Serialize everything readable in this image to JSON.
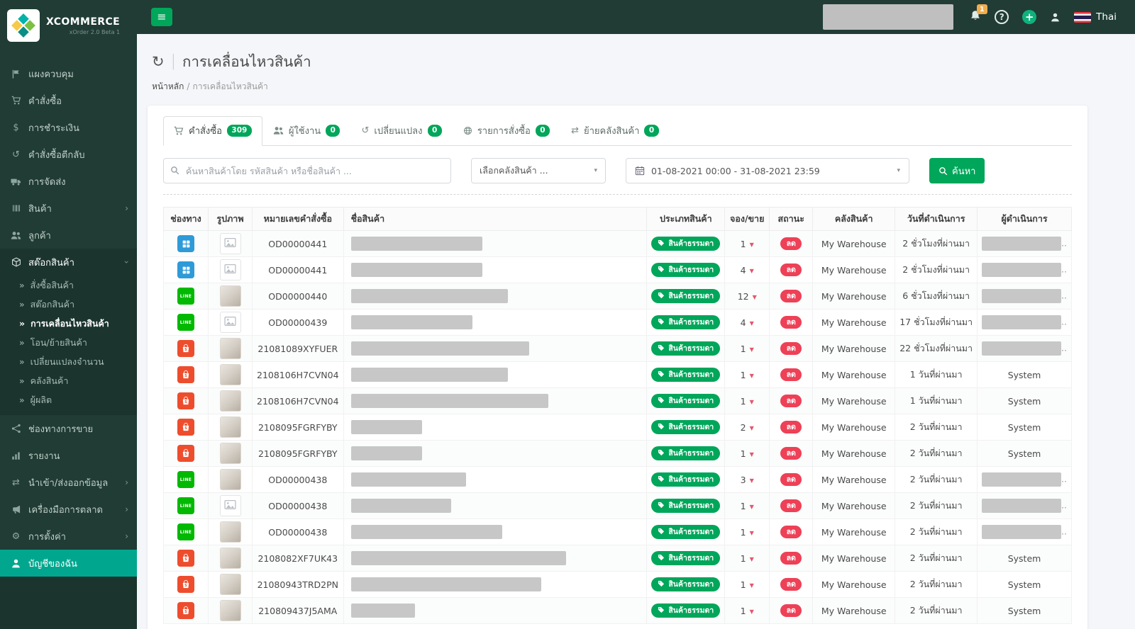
{
  "app": {
    "brand": "XCOMMERCE",
    "brand_sub": "xOrder 2.0 Beta 1",
    "language": "Thai",
    "notification_count": "1"
  },
  "colors": {
    "accent_green": "#00a65a",
    "account_green": "#00a78e",
    "sidebar_dark": "#203c35",
    "status_red": "#ee4056",
    "notification_orange": "#f0ad4e",
    "shopee_orange": "#ee4d2d",
    "line_green": "#00b900",
    "web_blue": "#2e9ad8"
  },
  "sidebar": {
    "items": [
      {
        "label": "แผงควบคุม",
        "icon": "flag-icon"
      },
      {
        "label": "คำสั่งซื้อ",
        "icon": "cart-icon"
      },
      {
        "label": "การชำระเงิน",
        "icon": "dollar-icon"
      },
      {
        "label": "คำสั่งซื้อตีกลับ",
        "icon": "undo-icon"
      },
      {
        "label": "การจัดส่ง",
        "icon": "truck-icon"
      },
      {
        "label": "สินค้า",
        "icon": "products-icon",
        "chevron": "right"
      },
      {
        "label": "ลูกค้า",
        "icon": "customers-icon"
      },
      {
        "label": "สต๊อกสินค้า",
        "icon": "stock-icon",
        "chevron": "down",
        "expanded": true,
        "children": [
          "สั่งซื้อสินค้า",
          "สต๊อกสินค้า",
          "การเคลื่อนไหวสินค้า",
          "โอน/ย้ายสินค้า",
          "เปลี่ยนแปลงจำนวน",
          "คลังสินค้า",
          "ผู้ผลิต"
        ],
        "active_child": "การเคลื่อนไหวสินค้า"
      },
      {
        "label": "ช่องทางการขาย",
        "icon": "channels-icon"
      },
      {
        "label": "รายงาน",
        "icon": "report-icon"
      },
      {
        "label": "นำเข้า/ส่งออกข้อมูล",
        "icon": "import-export-icon",
        "chevron": "right"
      },
      {
        "label": "เครื่องมือการตลาด",
        "icon": "marketing-icon",
        "chevron": "right"
      },
      {
        "label": "การตั้งค่า",
        "icon": "settings-icon",
        "chevron": "right"
      },
      {
        "label": "บัญชีของฉัน",
        "icon": "user-icon",
        "highlight": true
      }
    ]
  },
  "header": {
    "title": "การเคลื่อนไหวสินค้า",
    "breadcrumb_home": "หน้าหลัก",
    "breadcrumb_current": "การเคลื่อนไหวสินค้า"
  },
  "tabs": [
    {
      "label": "คำสั่งซื้อ",
      "count": "309",
      "icon": "cart-icon",
      "active": true
    },
    {
      "label": "ผู้ใช้งาน",
      "count": "0",
      "icon": "users-icon",
      "active": false
    },
    {
      "label": "เปลี่ยนแปลง",
      "count": "0",
      "icon": "history-icon",
      "active": false
    },
    {
      "label": "รายการสั่งซื้อ",
      "count": "0",
      "icon": "globe-icon",
      "active": false
    },
    {
      "label": "ย้ายคลังสินค้า",
      "count": "0",
      "icon": "transfer-icon",
      "active": false
    }
  ],
  "filters": {
    "search_placeholder": "ค้นหาสินค้าโดย รหัสสินค้า หรือชื่อสินค้า ...",
    "warehouse_placeholder": "เลือกคลังสินค้า ...",
    "date_range": "01-08-2021 00:00 - 31-08-2021 23:59",
    "search_button": "ค้นหา"
  },
  "table": {
    "columns": [
      "ช่องทาง",
      "รูปภาพ",
      "หมายเลขคำสั่งซื้อ",
      "ชื่อสินค้า",
      "ประเภทสินค้า",
      "จอง/ขาย",
      "สถานะ",
      "คลังสินค้า",
      "วันที่ดำเนินการ",
      "ผู้ดำเนินการ"
    ],
    "type_badge": "สินค้าธรรมดา",
    "status_badge": "ลด",
    "rows": [
      {
        "channel": "web",
        "image": "placeholder",
        "order": "OD00000441",
        "name_width": 185,
        "qty": "1",
        "warehouse": "My Warehouse",
        "date": "2 ชั่วโมงที่ผ่านมา",
        "operator": "redacted"
      },
      {
        "channel": "web",
        "image": "placeholder",
        "order": "OD00000441",
        "name_width": 185,
        "qty": "4",
        "warehouse": "My Warehouse",
        "date": "2 ชั่วโมงที่ผ่านมา",
        "operator": "redacted"
      },
      {
        "channel": "line",
        "image": "photo",
        "order": "OD00000440",
        "name_width": 221,
        "qty": "12",
        "warehouse": "My Warehouse",
        "date": "6 ชั่วโมงที่ผ่านมา",
        "operator": "redacted"
      },
      {
        "channel": "line",
        "image": "placeholder",
        "order": "OD00000439",
        "name_width": 171,
        "qty": "4",
        "warehouse": "My Warehouse",
        "date": "17 ชั่วโมงที่ผ่านมา",
        "operator": "redacted"
      },
      {
        "channel": "shopee",
        "image": "photo",
        "order": "21081089XYFUER",
        "name_width": 251,
        "qty": "1",
        "warehouse": "My Warehouse",
        "date": "22 ชั่วโมงที่ผ่านมา",
        "operator": "redacted"
      },
      {
        "channel": "shopee",
        "image": "photo",
        "order": "2108106H7CVN04",
        "name_width": 221,
        "qty": "1",
        "warehouse": "My Warehouse",
        "date": "1 วันที่ผ่านมา",
        "operator": "System"
      },
      {
        "channel": "shopee",
        "image": "photo",
        "order": "2108106H7CVN04",
        "name_width": 278,
        "qty": "1",
        "warehouse": "My Warehouse",
        "date": "1 วันที่ผ่านมา",
        "operator": "System"
      },
      {
        "channel": "shopee",
        "image": "photo",
        "order": "2108095FGRFYBY",
        "name_width": 100,
        "qty": "2",
        "warehouse": "My Warehouse",
        "date": "2 วันที่ผ่านมา",
        "operator": "System"
      },
      {
        "channel": "shopee",
        "image": "photo",
        "order": "2108095FGRFYBY",
        "name_width": 100,
        "qty": "1",
        "warehouse": "My Warehouse",
        "date": "2 วันที่ผ่านมา",
        "operator": "System"
      },
      {
        "channel": "line",
        "image": "photo",
        "order": "OD00000438",
        "name_width": 162,
        "qty": "3",
        "warehouse": "My Warehouse",
        "date": "2 วันที่ผ่านมา",
        "operator": "redacted"
      },
      {
        "channel": "line",
        "image": "placeholder",
        "order": "OD00000438",
        "name_width": 141,
        "qty": "1",
        "warehouse": "My Warehouse",
        "date": "2 วันที่ผ่านมา",
        "operator": "redacted"
      },
      {
        "channel": "line",
        "image": "photo",
        "order": "OD00000438",
        "name_width": 213,
        "qty": "1",
        "warehouse": "My Warehouse",
        "date": "2 วันที่ผ่านมา",
        "operator": "redacted"
      },
      {
        "channel": "shopee",
        "image": "photo",
        "order": "2108082XF7UK43",
        "name_width": 303,
        "qty": "1",
        "warehouse": "My Warehouse",
        "date": "2 วันที่ผ่านมา",
        "operator": "System"
      },
      {
        "channel": "shopee",
        "image": "photo",
        "order": "21080943TRD2PN",
        "name_width": 268,
        "qty": "1",
        "warehouse": "My Warehouse",
        "date": "2 วันที่ผ่านมา",
        "operator": "System"
      },
      {
        "channel": "shopee",
        "image": "photo",
        "order": "210809437J5AMA",
        "name_width": 90,
        "qty": "1",
        "warehouse": "My Warehouse",
        "date": "2 วันที่ผ่านมา",
        "operator": "System"
      }
    ]
  }
}
